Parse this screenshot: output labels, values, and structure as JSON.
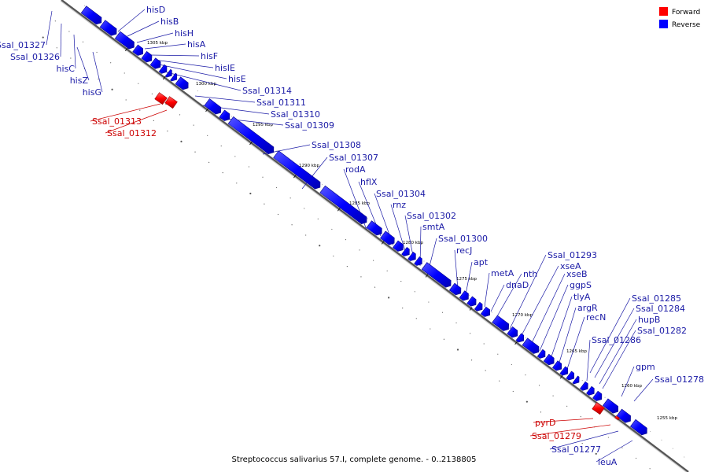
{
  "caption": "Streptococcus salivarius 57.I, complete genome. - 0..2138805",
  "legend": [
    {
      "label": "Forward",
      "color": "#ff0000"
    },
    {
      "label": "Reverse",
      "color": "#0000ff"
    }
  ],
  "colors": {
    "forward": "#ff0000",
    "reverse": "#0000ff",
    "forward_label": "#cc0000",
    "reverse_label": "#1a1aa6",
    "backbone": "#888888"
  },
  "ticks": [
    "1305 kbp",
    "1300 kbp",
    "1295 kbp",
    "1290 kbp",
    "1285 kbp",
    "1280 kbp",
    "1275 kbp",
    "1270 kbp",
    "1265 kbp",
    "1260 kbp",
    "1255 kbp"
  ],
  "genes": [
    {
      "name": "Ssal_01327",
      "strand": "reverse"
    },
    {
      "name": "Ssal_01326",
      "strand": "reverse"
    },
    {
      "name": "hisC",
      "strand": "reverse"
    },
    {
      "name": "hisZ",
      "strand": "reverse"
    },
    {
      "name": "hisG",
      "strand": "reverse"
    },
    {
      "name": "hisD",
      "strand": "reverse"
    },
    {
      "name": "hisB",
      "strand": "reverse"
    },
    {
      "name": "hisH",
      "strand": "reverse"
    },
    {
      "name": "hisA",
      "strand": "reverse"
    },
    {
      "name": "hisF",
      "strand": "reverse"
    },
    {
      "name": "hisIE",
      "strand": "reverse"
    },
    {
      "name": "hisE",
      "strand": "reverse"
    },
    {
      "name": "Ssal_01314",
      "strand": "reverse"
    },
    {
      "name": "Ssal_01313",
      "strand": "forward"
    },
    {
      "name": "Ssal_01312",
      "strand": "forward"
    },
    {
      "name": "Ssal_01311",
      "strand": "reverse"
    },
    {
      "name": "Ssal_01310",
      "strand": "reverse"
    },
    {
      "name": "Ssal_01309",
      "strand": "reverse"
    },
    {
      "name": "Ssal_01308",
      "strand": "reverse"
    },
    {
      "name": "Ssal_01307",
      "strand": "reverse"
    },
    {
      "name": "rodA",
      "strand": "reverse"
    },
    {
      "name": "hflX",
      "strand": "reverse"
    },
    {
      "name": "Ssal_01304",
      "strand": "reverse"
    },
    {
      "name": "rnz",
      "strand": "reverse"
    },
    {
      "name": "Ssal_01302",
      "strand": "reverse"
    },
    {
      "name": "smtA",
      "strand": "reverse"
    },
    {
      "name": "Ssal_01300",
      "strand": "reverse"
    },
    {
      "name": "recJ",
      "strand": "reverse"
    },
    {
      "name": "apt",
      "strand": "reverse"
    },
    {
      "name": "metA",
      "strand": "reverse"
    },
    {
      "name": "dnaD",
      "strand": "reverse"
    },
    {
      "name": "nth",
      "strand": "reverse"
    },
    {
      "name": "Ssal_01293",
      "strand": "reverse"
    },
    {
      "name": "xseA",
      "strand": "reverse"
    },
    {
      "name": "xseB",
      "strand": "reverse"
    },
    {
      "name": "ggpS",
      "strand": "reverse"
    },
    {
      "name": "tlyA",
      "strand": "reverse"
    },
    {
      "name": "argR",
      "strand": "reverse"
    },
    {
      "name": "recN",
      "strand": "reverse"
    },
    {
      "name": "Ssal_01286",
      "strand": "reverse"
    },
    {
      "name": "Ssal_01285",
      "strand": "reverse"
    },
    {
      "name": "Ssal_01284",
      "strand": "reverse"
    },
    {
      "name": "hupB",
      "strand": "reverse"
    },
    {
      "name": "Ssal_01282",
      "strand": "reverse"
    },
    {
      "name": "gpm",
      "strand": "reverse"
    },
    {
      "name": "Ssal_01278",
      "strand": "reverse"
    },
    {
      "name": "pyrD",
      "strand": "forward"
    },
    {
      "name": "Ssal_01279",
      "strand": "forward"
    },
    {
      "name": "Ssal_01277",
      "strand": "reverse"
    },
    {
      "name": "leuA",
      "strand": "reverse"
    }
  ]
}
